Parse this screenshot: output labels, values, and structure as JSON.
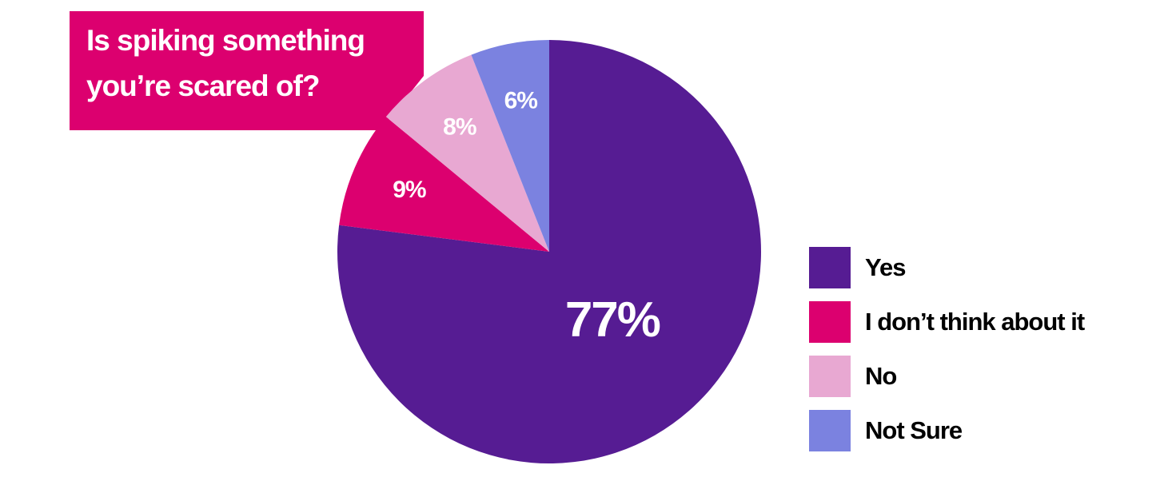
{
  "chart_data": {
    "type": "pie",
    "title": "Is spiking something you’re scared of?",
    "categories": [
      "Yes",
      "I don’t think about it",
      "No",
      "Not Sure"
    ],
    "values": [
      77,
      9,
      8,
      6
    ],
    "value_labels": [
      "77%",
      "9%",
      "8%",
      "6%"
    ],
    "colors": [
      "#561c93",
      "#dc006f",
      "#e8a8d2",
      "#7b82e0"
    ],
    "title_color": "#dc006f"
  }
}
